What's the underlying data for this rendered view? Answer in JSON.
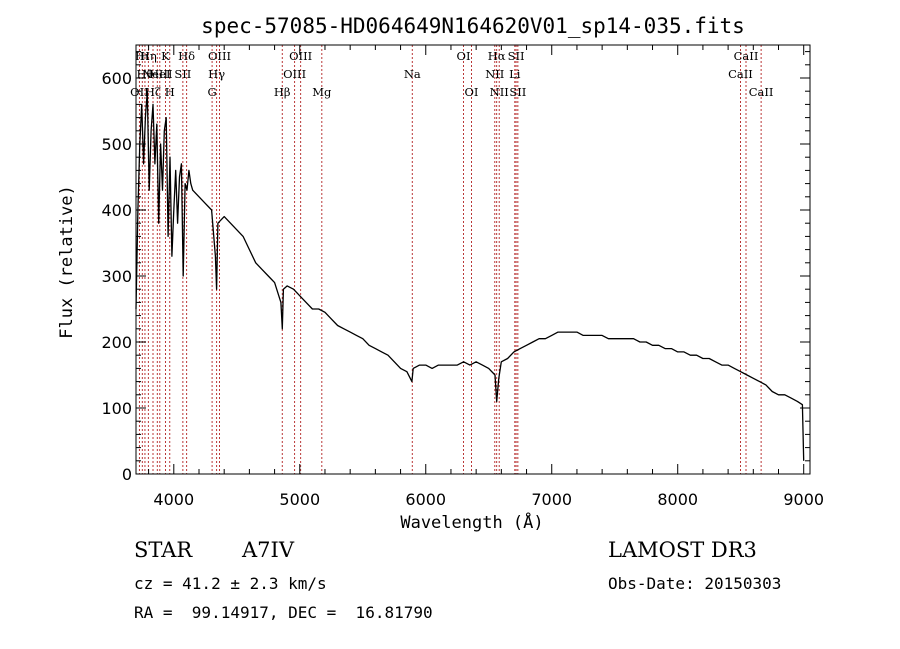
{
  "chart_data": {
    "type": "line",
    "title": "spec-57085-HD064649N164620V01_sp14-035.fits",
    "xlabel": "Wavelength (Å)",
    "ylabel": "Flux (relative)",
    "xlim": [
      3700,
      9050
    ],
    "ylim": [
      0,
      650
    ],
    "xticks": [
      "4000",
      "5000",
      "6000",
      "7000",
      "8000",
      "9000"
    ],
    "yticks": [
      "0",
      "100",
      "200",
      "300",
      "400",
      "500",
      "600"
    ],
    "grid": false,
    "series": [
      {
        "x": [
          3700,
          3715,
          3730,
          3745,
          3760,
          3775,
          3790,
          3805,
          3820,
          3835,
          3850,
          3865,
          3880,
          3895,
          3910,
          3925,
          3940,
          3955,
          3970,
          3985,
          4000,
          4015,
          4030,
          4045,
          4060,
          4075,
          4090,
          4105,
          4120,
          4135,
          4150,
          4200,
          4250,
          4300,
          4330,
          4340,
          4350,
          4400,
          4450,
          4500,
          4550,
          4600,
          4650,
          4700,
          4750,
          4800,
          4850,
          4861,
          4870,
          4900,
          4950,
          5000,
          5050,
          5100,
          5150,
          5200,
          5250,
          5300,
          5350,
          5400,
          5450,
          5500,
          5550,
          5600,
          5650,
          5700,
          5750,
          5800,
          5850,
          5890,
          5900,
          5950,
          6000,
          6050,
          6100,
          6150,
          6200,
          6250,
          6300,
          6350,
          6400,
          6450,
          6500,
          6550,
          6563,
          6580,
          6600,
          6650,
          6700,
          6750,
          6800,
          6850,
          6900,
          6950,
          7000,
          7050,
          7100,
          7150,
          7200,
          7250,
          7300,
          7350,
          7400,
          7450,
          7500,
          7550,
          7600,
          7650,
          7700,
          7750,
          7800,
          7850,
          7900,
          7950,
          8000,
          8050,
          8100,
          8150,
          8200,
          8250,
          8300,
          8350,
          8400,
          8450,
          8500,
          8550,
          8600,
          8650,
          8700,
          8750,
          8800,
          8850,
          8900,
          8950,
          8990,
          9000
        ],
        "y": [
          250,
          400,
          500,
          560,
          470,
          540,
          580,
          430,
          520,
          560,
          470,
          530,
          380,
          500,
          430,
          520,
          540,
          360,
          480,
          330,
          400,
          460,
          380,
          450,
          470,
          300,
          440,
          430,
          460,
          440,
          430,
          420,
          410,
          400,
          330,
          280,
          380,
          390,
          380,
          370,
          360,
          340,
          320,
          310,
          300,
          290,
          260,
          220,
          280,
          285,
          280,
          270,
          260,
          250,
          250,
          245,
          235,
          225,
          220,
          215,
          210,
          205,
          195,
          190,
          185,
          180,
          170,
          160,
          155,
          140,
          160,
          165,
          165,
          160,
          165,
          165,
          165,
          165,
          170,
          165,
          170,
          165,
          160,
          150,
          110,
          145,
          170,
          175,
          185,
          190,
          195,
          200,
          205,
          205,
          210,
          215,
          215,
          215,
          215,
          210,
          210,
          210,
          210,
          205,
          205,
          205,
          205,
          205,
          200,
          200,
          195,
          195,
          190,
          190,
          185,
          185,
          180,
          180,
          175,
          175,
          170,
          165,
          165,
          160,
          155,
          150,
          145,
          140,
          135,
          125,
          120,
          120,
          115,
          110,
          105,
          20
        ]
      }
    ],
    "lines": [
      {
        "wl": 3727,
        "name": "OII",
        "row": 2
      },
      {
        "wl": 3750,
        "name": "Hι",
        "row": 0
      },
      {
        "wl": 3771,
        "name": "Hθ",
        "row": 1
      },
      {
        "wl": 3798,
        "name": "Hη",
        "row": 0
      },
      {
        "wl": 3835,
        "name": "Hζ",
        "row": 2
      },
      {
        "wl": 3869,
        "name": "NeIII",
        "row": 1
      },
      {
        "wl": 3889,
        "name": "HeI",
        "row": 1
      },
      {
        "wl": 3934,
        "name": "K",
        "row": 0
      },
      {
        "wl": 3968,
        "name": "H",
        "row": 2
      },
      {
        "wl": 4072,
        "name": "SII",
        "row": 1
      },
      {
        "wl": 4102,
        "name": "Hδ",
        "row": 0
      },
      {
        "wl": 4304,
        "name": "G",
        "row": 2
      },
      {
        "wl": 4340,
        "name": "Hγ",
        "row": 1
      },
      {
        "wl": 4363,
        "name": "OIII",
        "row": 0
      },
      {
        "wl": 4861,
        "name": "Hβ",
        "row": 2
      },
      {
        "wl": 4959,
        "name": "OIII",
        "row": 1
      },
      {
        "wl": 5007,
        "name": "OIII",
        "row": 0
      },
      {
        "wl": 5175,
        "name": "Mg",
        "row": 2
      },
      {
        "wl": 5893,
        "name": "Na",
        "row": 1
      },
      {
        "wl": 6300,
        "name": "OI",
        "row": 0
      },
      {
        "wl": 6363,
        "name": "OI",
        "row": 2
      },
      {
        "wl": 6548,
        "name": "NII",
        "row": 1
      },
      {
        "wl": 6563,
        "name": "Hα",
        "row": 0
      },
      {
        "wl": 6583,
        "name": "NII",
        "row": 2
      },
      {
        "wl": 6707,
        "name": "Li",
        "row": 1
      },
      {
        "wl": 6717,
        "name": "SII",
        "row": 0
      },
      {
        "wl": 6731,
        "name": "SII",
        "row": 2
      },
      {
        "wl": 8498,
        "name": "CaII",
        "row": 1
      },
      {
        "wl": 8542,
        "name": "CaII",
        "row": 0
      },
      {
        "wl": 8662,
        "name": "CaII",
        "row": 2
      }
    ]
  },
  "info": {
    "object_type": "STAR",
    "subclass": "A7IV",
    "survey": "LAMOST DR3",
    "redshift": "cz = 41.2 ± 2.3 km/s",
    "obs_date": "Obs-Date: 20150303",
    "coords": "RA =  99.14917, DEC =  16.81790"
  }
}
